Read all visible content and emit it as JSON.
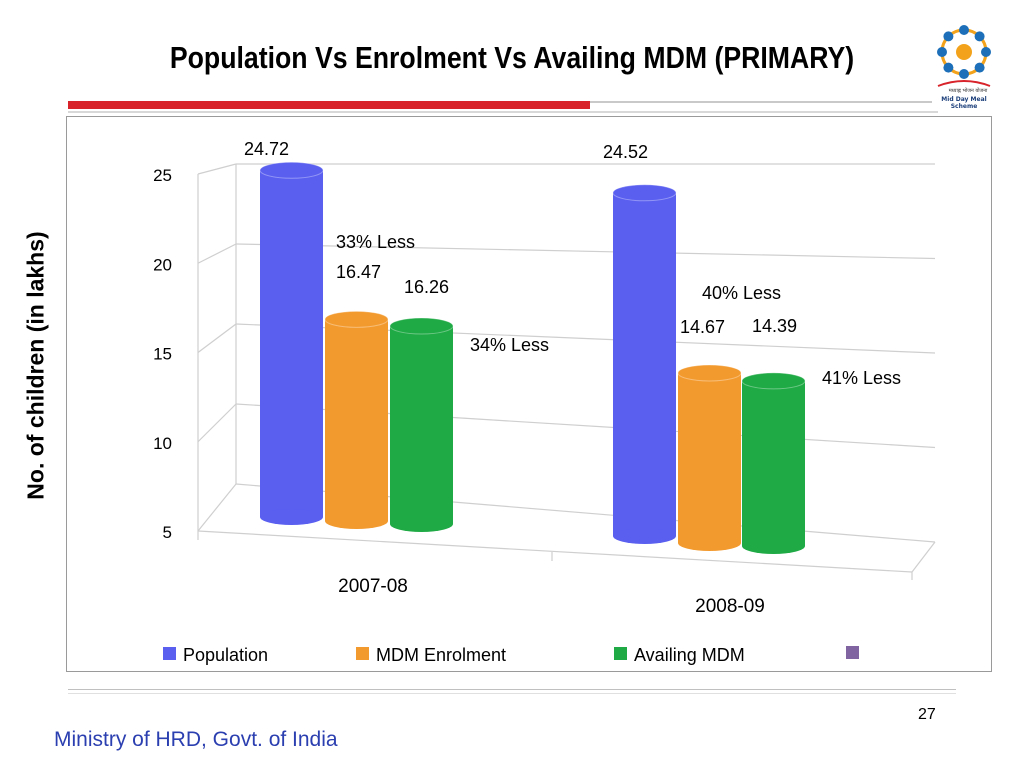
{
  "slide": {
    "title": "Population Vs Enrolment Vs Availing MDM (PRIMARY)",
    "footer": "Ministry of HRD, Govt. of India",
    "page_number": "27",
    "logo": {
      "icon": "mid-day-meal-logo",
      "text_hindi": "मध्याह्न भोजन योजना",
      "text_english": "Mid Day Meal Scheme"
    }
  },
  "colors": {
    "population": "#5a5ff0",
    "enrolment": "#f39a2e",
    "availing": "#1faa45",
    "extra": "#8064a2",
    "accent": "#d8232a",
    "footer": "#2b3fb0"
  },
  "chart_data": {
    "type": "bar",
    "style": "3d-cylinder",
    "title": "Population Vs Enrolment Vs Availing MDM (PRIMARY)",
    "ylabel": "No. of children (in lakhs)",
    "xlabel": "",
    "ylim": [
      5,
      25
    ],
    "yticks": [
      5,
      10,
      15,
      20,
      25
    ],
    "grid": true,
    "legend_position": "bottom",
    "categories": [
      "2007-08",
      "2008-09"
    ],
    "series": [
      {
        "name": "Population",
        "values": [
          24.72,
          24.52
        ],
        "labels": [
          "24.72",
          "24.52"
        ]
      },
      {
        "name": "MDM Enrolment",
        "values": [
          16.47,
          14.67
        ],
        "labels": [
          "16.47",
          "14.67"
        ]
      },
      {
        "name": "Availing MDM",
        "values": [
          16.26,
          14.39
        ],
        "labels": [
          "16.26",
          "14.39"
        ]
      }
    ],
    "legend_extra_swatch": true,
    "annotations": [
      {
        "text": "33% Less",
        "category": 0
      },
      {
        "text": "34% Less",
        "category": 0
      },
      {
        "text": "40% Less",
        "category": 1
      },
      {
        "text": "41% Less",
        "category": 1
      }
    ]
  }
}
